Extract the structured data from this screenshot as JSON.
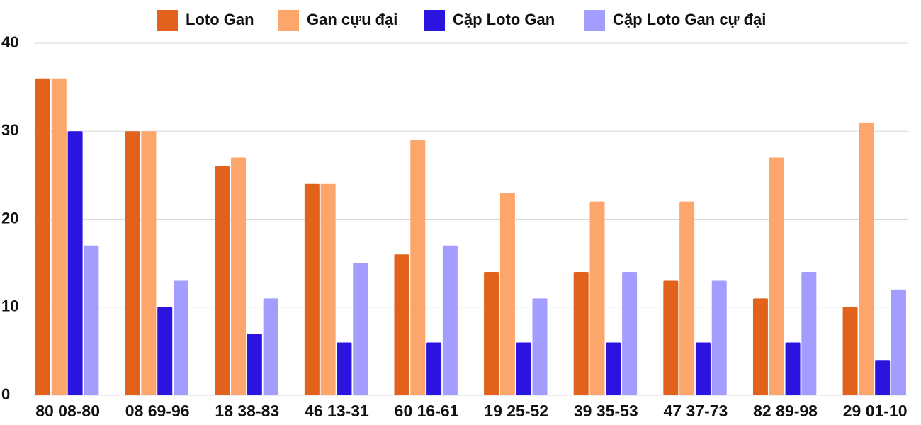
{
  "chart_data": {
    "type": "bar",
    "categories": [
      "80 08-80",
      "08 69-96",
      "18 38-83",
      "46 13-31",
      "60 16-61",
      "19 25-52",
      "39 35-53",
      "47 37-73",
      "82 89-98",
      "29 01-10"
    ],
    "series": [
      {
        "name": "Loto Gan",
        "color": "#e2621b",
        "values": [
          36,
          30,
          26,
          24,
          16,
          14,
          14,
          13,
          11,
          10
        ]
      },
      {
        "name": "Gan cựu đại",
        "color": "#fda66b",
        "values": [
          36,
          30,
          27,
          24,
          29,
          23,
          22,
          22,
          27,
          31
        ]
      },
      {
        "name": "Cặp Loto Gan",
        "color": "#2b14e0",
        "values": [
          30,
          10,
          7,
          6,
          6,
          6,
          6,
          6,
          6,
          4
        ]
      },
      {
        "name": "Cặp Loto Gan cự đại",
        "color": "#a39dff",
        "values": [
          17,
          13,
          11,
          15,
          17,
          11,
          14,
          13,
          14,
          12
        ]
      }
    ],
    "ylim": [
      0,
      40
    ],
    "yticks": [
      0,
      10,
      20,
      30,
      40
    ],
    "grid": true,
    "legend": "top"
  }
}
